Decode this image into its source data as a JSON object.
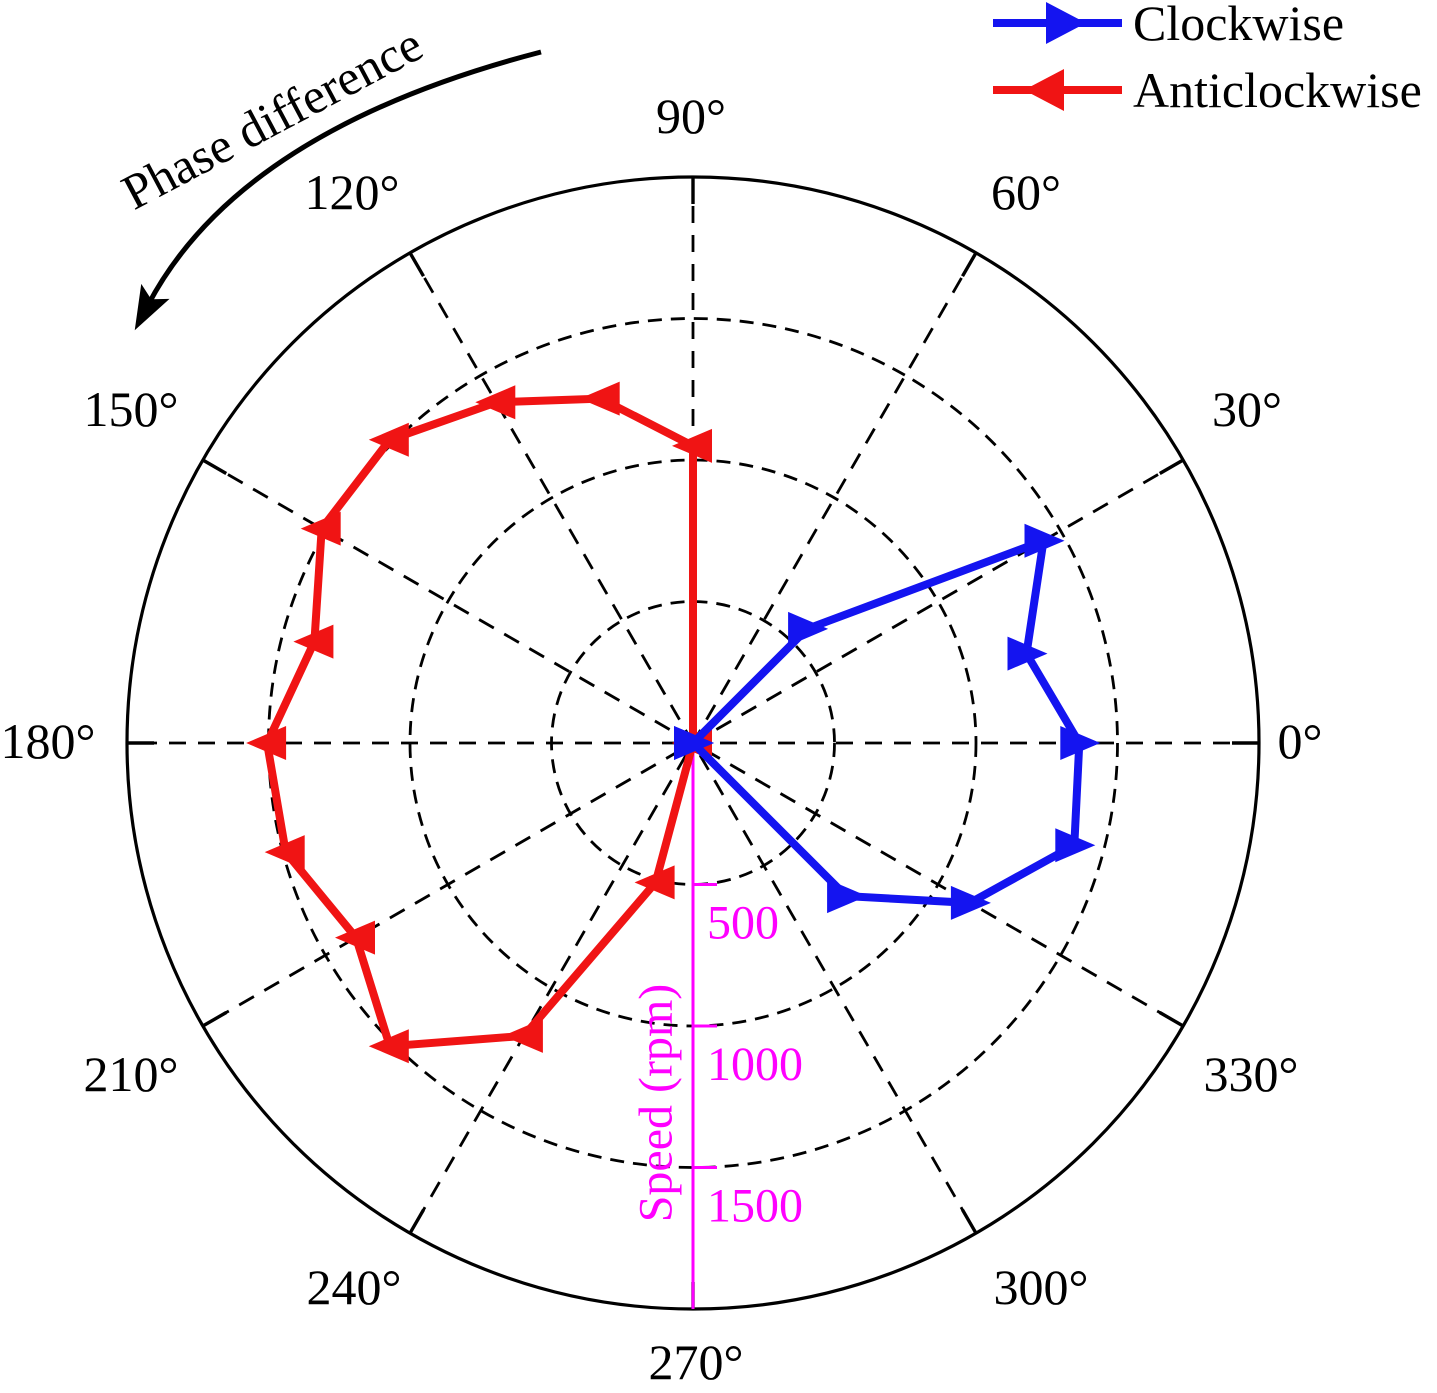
{
  "chart_data": {
    "type": "line",
    "subtype": "polar",
    "title": "",
    "angular_axis": {
      "unit": "degrees",
      "tick_step_deg": 30,
      "angles": [
        0,
        30,
        60,
        90,
        120,
        150,
        180,
        210,
        240,
        270,
        300,
        330
      ],
      "labels": [
        "0°",
        "30°",
        "60°",
        "90°",
        "120°",
        "150°",
        "180°",
        "210°",
        "240°",
        "270°",
        "300°",
        "330°"
      ],
      "gridline_style": "dashed"
    },
    "radial_axis": {
      "label": "Speed (rpm)",
      "ticks": [
        500,
        1000,
        1500
      ],
      "tick_labels": [
        "500",
        "1000",
        "1500"
      ],
      "range": [
        0,
        2000
      ],
      "color": "#FF00FF",
      "gridline_style": "dashed"
    },
    "legend": {
      "position": "top-right",
      "items": [
        {
          "label": "Clockwise",
          "color": "#1414F0",
          "marker": "right-triangle"
        },
        {
          "label": "Anticlockwise",
          "color": "#F01414",
          "marker": "left-triangle"
        }
      ]
    },
    "annotation": {
      "text": "Phase difference",
      "arrow": "curved arrow sweeping anticlockwise above the circle toward 150°"
    },
    "series": [
      {
        "name": "Clockwise",
        "color": "#1414F0",
        "marker": "right-triangle",
        "points": [
          {
            "phase_deg": null,
            "speed_rpm": 0
          },
          {
            "phase_deg": 45,
            "speed_rpm": 570
          },
          {
            "phase_deg": 30,
            "speed_rpm": 1430
          },
          {
            "phase_deg": 15,
            "speed_rpm": 1220
          },
          {
            "phase_deg": 0,
            "speed_rpm": 1365
          },
          {
            "phase_deg": 345,
            "speed_rpm": 1395
          },
          {
            "phase_deg": 330,
            "speed_rpm": 1130
          },
          {
            "phase_deg": 315,
            "speed_rpm": 765
          },
          {
            "phase_deg": null,
            "speed_rpm": 0
          }
        ]
      },
      {
        "name": "Anticlockwise",
        "color": "#F01414",
        "marker": "left-triangle",
        "points": [
          {
            "phase_deg": null,
            "speed_rpm": 0
          },
          {
            "phase_deg": 90,
            "speed_rpm": 1050
          },
          {
            "phase_deg": 105,
            "speed_rpm": 1260
          },
          {
            "phase_deg": 120,
            "speed_rpm": 1390
          },
          {
            "phase_deg": 135,
            "speed_rpm": 1515
          },
          {
            "phase_deg": 150,
            "speed_rpm": 1515
          },
          {
            "phase_deg": 165,
            "speed_rpm": 1385
          },
          {
            "phase_deg": 180,
            "speed_rpm": 1505
          },
          {
            "phase_deg": 195,
            "speed_rpm": 1490
          },
          {
            "phase_deg": 210,
            "speed_rpm": 1375
          },
          {
            "phase_deg": 225,
            "speed_rpm": 1515
          },
          {
            "phase_deg": 240,
            "speed_rpm": 1195
          },
          {
            "phase_deg": 255,
            "speed_rpm": 510
          },
          {
            "phase_deg": null,
            "speed_rpm": 0
          }
        ]
      }
    ]
  }
}
